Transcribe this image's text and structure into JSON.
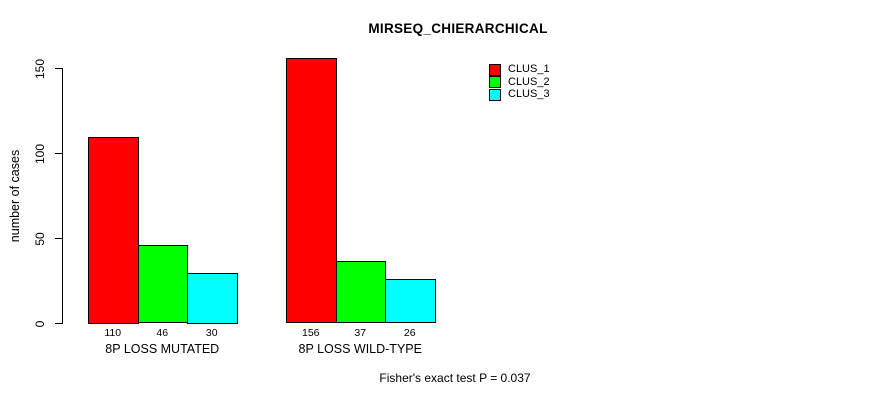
{
  "chart_data": {
    "type": "bar",
    "title": "MIRSEQ_CHIERARCHICAL",
    "xlabel": "",
    "ylabel": "number of cases",
    "categories": [
      "8P LOSS MUTATED",
      "8P LOSS WILD-TYPE"
    ],
    "series": [
      {
        "name": "CLUS_1",
        "color": "#ff0000",
        "values": [
          110,
          156
        ]
      },
      {
        "name": "CLUS_2",
        "color": "#00ff00",
        "values": [
          46,
          37
        ]
      },
      {
        "name": "CLUS_3",
        "color": "#00ffff",
        "values": [
          30,
          26
        ]
      }
    ],
    "bar_value_labels": [
      [
        110,
        46,
        30
      ],
      [
        156,
        37,
        26
      ]
    ],
    "ylim": [
      0,
      150
    ],
    "yticks": [
      0,
      50,
      100,
      150
    ],
    "grid": false,
    "legend_position": "top-right",
    "legend_entries": [
      "CLUS_1",
      "CLUS_2",
      "CLUS_3"
    ],
    "annotation": "Fisher's exact test P = 0.037",
    "axis_color": "#000000",
    "background_color": "#ffffff"
  }
}
